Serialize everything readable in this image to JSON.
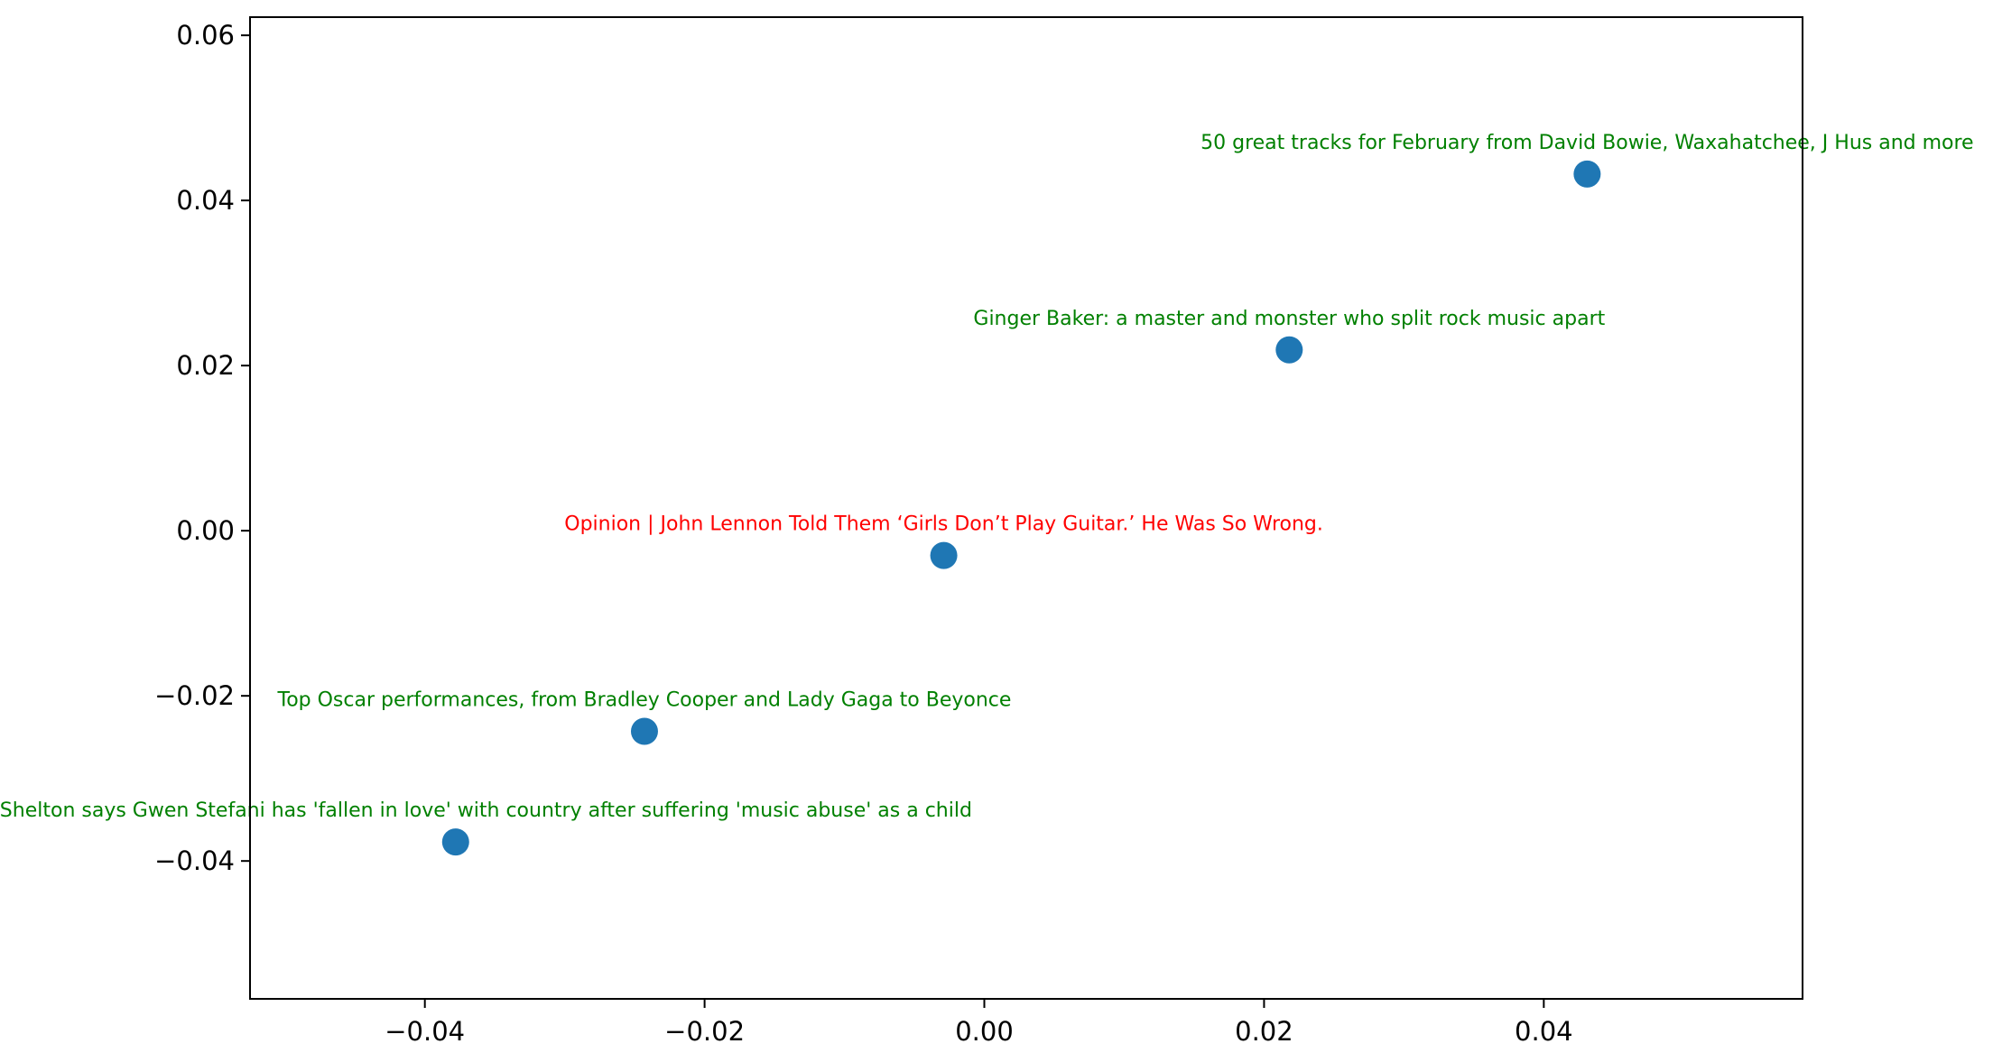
{
  "chart_data": {
    "type": "scatter",
    "title": "",
    "xlabel": "",
    "ylabel": "",
    "xlim": [
      -0.0525,
      0.0585
    ],
    "ylim": [
      -0.0567,
      0.0622
    ],
    "grid": false,
    "x_ticks": [
      {
        "value": -0.04,
        "label": "−0.04"
      },
      {
        "value": -0.02,
        "label": "−0.02"
      },
      {
        "value": 0.0,
        "label": "0.00"
      },
      {
        "value": 0.02,
        "label": "0.02"
      },
      {
        "value": 0.04,
        "label": "0.04"
      }
    ],
    "y_ticks": [
      {
        "value": -0.04,
        "label": "−0.04"
      },
      {
        "value": -0.02,
        "label": "−0.02"
      },
      {
        "value": 0.0,
        "label": "0.00"
      },
      {
        "value": 0.02,
        "label": "0.02"
      },
      {
        "value": 0.04,
        "label": "0.04"
      },
      {
        "value": 0.06,
        "label": "0.06"
      }
    ],
    "marker_color": "#1f77b4",
    "points": [
      {
        "x": 0.0431,
        "y": 0.0432,
        "label": "50 great tracks for February from David Bowie, Waxahatchee, J Hus and more",
        "label_color": "#008000"
      },
      {
        "x": 0.0218,
        "y": 0.0219,
        "label": "Ginger Baker: a master and monster who split rock music apart",
        "label_color": "#008000"
      },
      {
        "x": -0.0029,
        "y": -0.003,
        "label": "Opinion | John Lennon Told Them ‘Girls Don’t Play Guitar.’ He Was So Wrong.",
        "label_color": "#ff0000"
      },
      {
        "x": -0.0243,
        "y": -0.0243,
        "label": "Top Oscar performances, from Bradley Cooper and Lady Gaga to Beyonce",
        "label_color": "#008000"
      },
      {
        "x": -0.0378,
        "y": -0.0377,
        "label": "Blake Shelton says Gwen Stefani has 'fallen in love' with country after suffering 'music abuse' as a child",
        "label_color": "#008000"
      }
    ]
  }
}
